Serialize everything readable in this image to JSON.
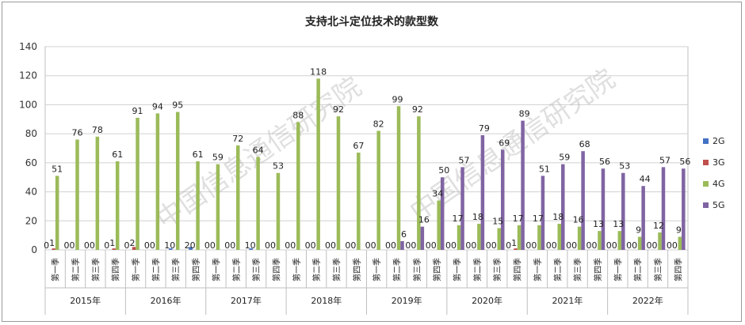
{
  "chart_data": {
    "type": "bar",
    "title": "支持北斗定位技术的款型数",
    "xlabel": "",
    "ylabel": "",
    "ylim": [
      0,
      140
    ],
    "yticks": [
      0,
      20,
      40,
      60,
      80,
      100,
      120,
      140
    ],
    "grid": true,
    "legend_position": "right",
    "watermark": "中国信息通信研究院",
    "years": [
      "2015年",
      "2016年",
      "2017年",
      "2018年",
      "2019年",
      "2020年",
      "2021年",
      "2022年"
    ],
    "quarters": [
      "第一季",
      "第二季",
      "第三季",
      "第四季"
    ],
    "categories": [
      "2015年 第一季",
      "2015年 第二季",
      "2015年 第三季",
      "2015年 第四季",
      "2016年 第一季",
      "2016年 第二季",
      "2016年 第三季",
      "2016年 第四季",
      "2017年 第一季",
      "2017年 第二季",
      "2017年 第三季",
      "2017年 第四季",
      "2018年 第一季",
      "2018年 第二季",
      "2018年 第三季",
      "2018年 第四季",
      "2019年 第一季",
      "2019年 第二季",
      "2019年 第三季",
      "2019年 第四季",
      "2020年 第一季",
      "2020年 第二季",
      "2020年 第三季",
      "2020年 第四季",
      "2021年 第一季",
      "2021年 第二季",
      "2021年 第三季",
      "2021年 第四季",
      "2022年 第一季",
      "2022年 第二季",
      "2022年 第三季",
      "2022年 第四季"
    ],
    "series": [
      {
        "name": "2G",
        "color": "#4472C4",
        "values": [
          0,
          0,
          0,
          0,
          0,
          0,
          1,
          2,
          0,
          0,
          1,
          0,
          0,
          0,
          0,
          0,
          0,
          0,
          0,
          0,
          0,
          0,
          0,
          0,
          0,
          0,
          0,
          0,
          0,
          0,
          0,
          0
        ]
      },
      {
        "name": "3G",
        "color": "#C0504D",
        "values": [
          1,
          0,
          0,
          1,
          2,
          0,
          0,
          0,
          0,
          0,
          0,
          0,
          0,
          0,
          0,
          0,
          0,
          0,
          0,
          0,
          0,
          0,
          0,
          1,
          0,
          0,
          0,
          0,
          0,
          0,
          0,
          0
        ]
      },
      {
        "name": "4G",
        "color": "#9BBB59",
        "values": [
          51,
          76,
          78,
          61,
          91,
          94,
          95,
          61,
          59,
          72,
          64,
          53,
          88,
          118,
          92,
          67,
          82,
          99,
          92,
          34,
          17,
          18,
          15,
          17,
          17,
          18,
          16,
          13,
          13,
          9,
          12,
          9
        ]
      },
      {
        "name": "5G",
        "color": "#8064A2",
        "values": [
          0,
          0,
          0,
          0,
          0,
          0,
          0,
          0,
          0,
          0,
          0,
          0,
          0,
          0,
          0,
          0,
          0,
          6,
          16,
          50,
          57,
          79,
          69,
          89,
          51,
          59,
          68,
          56,
          53,
          44,
          57,
          56
        ]
      }
    ]
  }
}
